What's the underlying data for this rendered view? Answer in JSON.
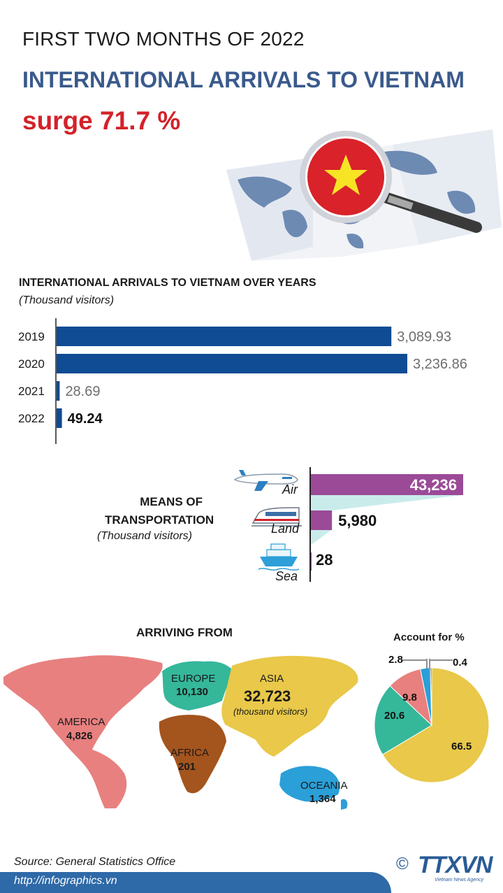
{
  "header": {
    "kicker": "FIRST TWO MONTHS OF 2022",
    "headline": "INTERNATIONAL ARRIVALS TO VIETNAM",
    "surge": "surge 71.7 %"
  },
  "colors": {
    "navy_bar": "#0f4c93",
    "purple": "#9b4a97",
    "teal_shadow": "#c9eceb",
    "headline_blue": "#3a5a8c",
    "surge_red": "#d3222a",
    "america": "#e8807f",
    "europe": "#35b79a",
    "asia": "#e9c84a",
    "africa": "#a4541d",
    "oceania": "#2b9fd8"
  },
  "chart_data": [
    {
      "type": "bar",
      "orientation": "horizontal",
      "title": "INTERNATIONAL ARRIVALS TO VIETNAM OVER YEARS",
      "subtitle": "(Thousand visitors)",
      "categories": [
        "2019",
        "2020",
        "2021",
        "2022"
      ],
      "values": [
        3089.93,
        3236.86,
        28.69,
        49.24
      ],
      "value_labels": [
        "3,089.93",
        "3,236.86",
        "28.69",
        "49.24"
      ],
      "highlight": "2022"
    },
    {
      "type": "bar",
      "orientation": "horizontal",
      "title": "MEANS OF TRANSPORTATION",
      "subtitle": "(Thousand visitors)",
      "categories": [
        "Air",
        "Land",
        "Sea"
      ],
      "values": [
        43236,
        5980,
        28
      ],
      "value_labels": [
        "43,236",
        "5,980",
        "28"
      ],
      "icons": [
        "airplane-icon",
        "train-icon",
        "ship-icon"
      ]
    },
    {
      "type": "pie",
      "title": "Account for %",
      "categories": [
        "ASIA",
        "EUROPE",
        "AMERICA",
        "OCEANIA",
        "AFRICA"
      ],
      "values": [
        66.5,
        20.6,
        9.8,
        2.8,
        0.4
      ],
      "value_labels": [
        "66.5",
        "20.6",
        "9.8",
        "2.8",
        "0.4"
      ]
    }
  ],
  "arriving": {
    "title": "ARRIVING FROM",
    "regions": [
      {
        "name": "AMERICA",
        "value": "4,826"
      },
      {
        "name": "EUROPE",
        "value": "10,130"
      },
      {
        "name": "ASIA",
        "value": "32,723",
        "unit": "(thousand visitors)"
      },
      {
        "name": "AFRICA",
        "value": "201"
      },
      {
        "name": "OCEANIA",
        "value": "1,364"
      }
    ]
  },
  "footer": {
    "source": "Source: General Statistics Office",
    "url": "http://infographics.vn",
    "copyright": "©",
    "brand": "TTXVN",
    "brand_sub": "Vietnam News Agency"
  }
}
